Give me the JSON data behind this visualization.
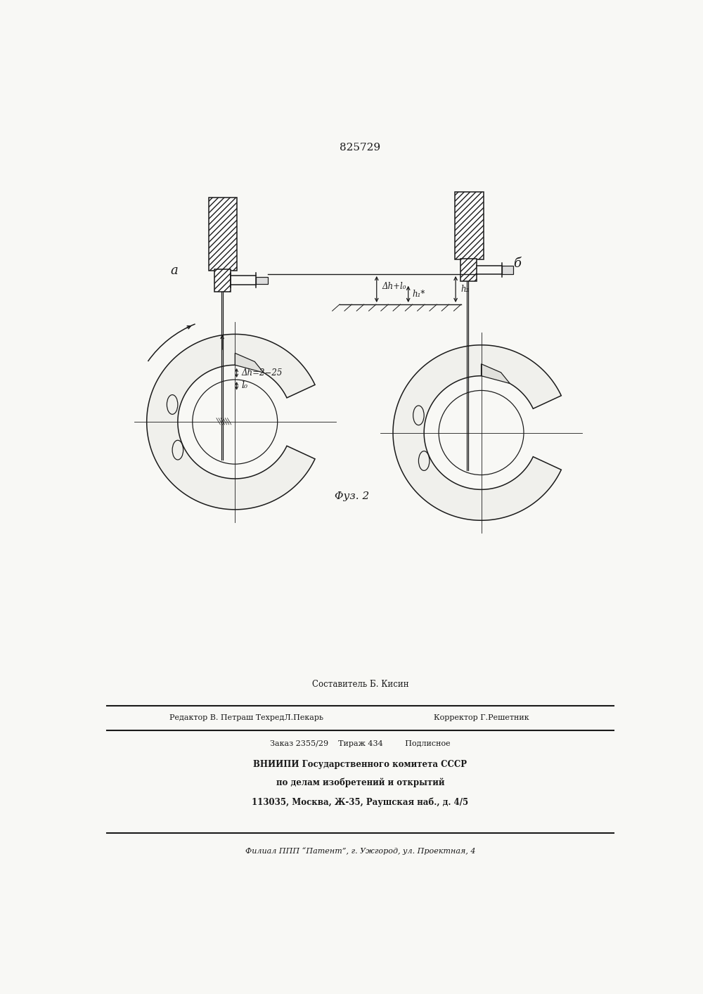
{
  "bg_color": "#f8f8f5",
  "line_color": "#1a1a1a",
  "title_text": "825729",
  "fig_caption": "Φуз. 2",
  "label_a": "а",
  "label_b": "б",
  "label_dh_lo": "Δh+l₀",
  "label_h1": "h₁*",
  "label_h2": "h₂",
  "label_dh": "Δh=2−25",
  "label_lo": "l₀",
  "footer_line1": "Составитель Б. Кисин",
  "footer_line2a": "Редактор В. Петраш ТехредЛ.Пекарь",
  "footer_line2b": "Корректор Г.Решетник",
  "footer_line3": "Заказ 2355/29    Тираж 434         Подлисное",
  "footer_line4": "ВНИИПИ Государственного комитета СССР",
  "footer_line5": "по делам изобретений и открытий",
  "footer_line6": "113035, Москва, Ж-35, Раушская наб., д. 4/5",
  "footer_line7": "Филиал ППП “Патент”, г. Ужгород, ул. Проектная, 4"
}
